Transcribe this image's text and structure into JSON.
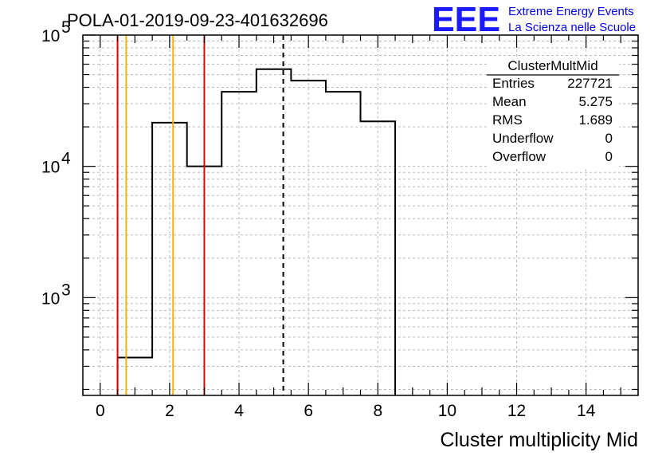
{
  "header": {
    "run_title": "POLA-01-2019-09-23-401632696",
    "logo_text": "EEE",
    "logo_line1": "Extreme Energy Events",
    "logo_line2": "La Scienza nelle Scuole",
    "logo_color": "#1a1aff"
  },
  "stats_box": {
    "title": "ClusterMultMid",
    "rows": [
      {
        "label": "Entries",
        "value": "227721"
      },
      {
        "label": "Mean",
        "value": "5.275"
      },
      {
        "label": "RMS",
        "value": "1.689"
      },
      {
        "label": "Underflow",
        "value": "0"
      },
      {
        "label": "Overflow",
        "value": "0"
      }
    ]
  },
  "chart_data": {
    "type": "histogram",
    "title": "POLA-01-2019-09-23-401632696",
    "xlabel": "Cluster multiplicity Mid",
    "ylabel": "",
    "xlim": [
      -0.5,
      15.5
    ],
    "ylim": [
      180,
      100000
    ],
    "ylog": true,
    "grid": true,
    "x_ticks": [
      0,
      2,
      4,
      6,
      8,
      10,
      12,
      14
    ],
    "y_ticks": [
      {
        "value": 1000,
        "base": "10",
        "exp": "3"
      },
      {
        "value": 10000,
        "base": "10",
        "exp": "4"
      },
      {
        "value": 100000,
        "base": "10",
        "exp": "5"
      }
    ],
    "bins": [
      {
        "x0": 0.5,
        "x1": 1.5,
        "y": 350
      },
      {
        "x0": 1.5,
        "x1": 2.5,
        "y": 21500
      },
      {
        "x0": 2.5,
        "x1": 3.5,
        "y": 10000
      },
      {
        "x0": 3.5,
        "x1": 4.5,
        "y": 37000
      },
      {
        "x0": 4.5,
        "x1": 5.5,
        "y": 55000
      },
      {
        "x0": 5.5,
        "x1": 6.5,
        "y": 45000
      },
      {
        "x0": 6.5,
        "x1": 7.5,
        "y": 37000
      },
      {
        "x0": 7.5,
        "x1": 8.5,
        "y": 22000
      }
    ],
    "vertical_lines": [
      {
        "x": 0.5,
        "color": "#e00000",
        "style": "solid"
      },
      {
        "x": 0.75,
        "color": "#f0b400",
        "style": "solid"
      },
      {
        "x": 2.1,
        "color": "#f0b400",
        "style": "solid"
      },
      {
        "x": 3.0,
        "color": "#e00000",
        "style": "solid"
      },
      {
        "x": 5.275,
        "color": "#000000",
        "style": "dashed"
      }
    ],
    "legend_position": "top-right",
    "line_color": "#000000"
  }
}
